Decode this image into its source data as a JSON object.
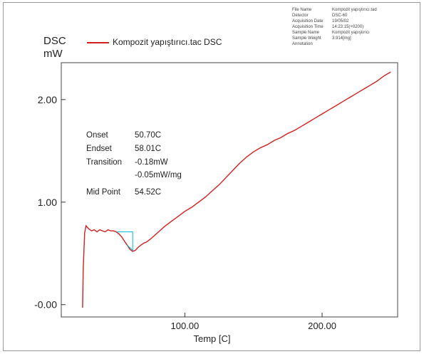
{
  "chart_data": {
    "type": "line",
    "ylabel_line1": "DSC",
    "ylabel_line2": "mW",
    "xlabel": "Temp [C]",
    "x_ticks": [
      {
        "value": 100,
        "label": "100.00"
      },
      {
        "value": 200,
        "label": "200.00"
      }
    ],
    "y_ticks": [
      {
        "value": 0,
        "label": "-0.00"
      },
      {
        "value": 1,
        "label": "1.00"
      },
      {
        "value": 2,
        "label": "2.00"
      }
    ],
    "xlim": [
      10,
      255
    ],
    "ylim": [
      -0.12,
      2.36
    ],
    "series": [
      {
        "name": "Kompozit yapıştırıcı.tac DSC",
        "color": "#d02020",
        "x": [
          25.5,
          26,
          27,
          28,
          30,
          32,
          34,
          36,
          38,
          40,
          42,
          44,
          46,
          48,
          50,
          52,
          54,
          56,
          58,
          60,
          62,
          64,
          66,
          68,
          70,
          72,
          75,
          80,
          85,
          90,
          95,
          100,
          105,
          110,
          115,
          120,
          125,
          130,
          135,
          140,
          145,
          150,
          155,
          160,
          165,
          170,
          175,
          180,
          185,
          190,
          195,
          200,
          205,
          210,
          215,
          220,
          225,
          230,
          235,
          240,
          245,
          250
        ],
        "y": [
          -0.03,
          0.35,
          0.7,
          0.77,
          0.74,
          0.72,
          0.73,
          0.71,
          0.73,
          0.72,
          0.71,
          0.73,
          0.72,
          0.72,
          0.71,
          0.69,
          0.66,
          0.62,
          0.58,
          0.54,
          0.52,
          0.53,
          0.56,
          0.58,
          0.6,
          0.61,
          0.64,
          0.7,
          0.76,
          0.81,
          0.86,
          0.91,
          0.95,
          1.0,
          1.05,
          1.11,
          1.17,
          1.24,
          1.31,
          1.38,
          1.44,
          1.49,
          1.53,
          1.56,
          1.6,
          1.63,
          1.67,
          1.7,
          1.74,
          1.78,
          1.82,
          1.86,
          1.9,
          1.94,
          1.98,
          2.02,
          2.06,
          2.1,
          2.14,
          2.18,
          2.23,
          2.27
        ]
      },
      {
        "name": "baseline",
        "color": "#00c0d0",
        "x": [
          50.7,
          62,
          62,
          58.01
        ],
        "y": [
          0.71,
          0.71,
          0.53,
          0.58
        ]
      }
    ]
  },
  "legend": {
    "label": "Kompozit yapıştırıcı.tac DSC"
  },
  "info": [
    {
      "k": "File Name",
      "v": "Kompozit yapıştırıcı.tad"
    },
    {
      "k": "Detector",
      "v": "DSC-60"
    },
    {
      "k": "Acquisition Date",
      "v": "19/05/02"
    },
    {
      "k": "Acquisition Time",
      "v": "14:23:15(+0200)"
    },
    {
      "k": "Sample Name",
      "v": "Kompozit yapıştırıcı"
    },
    {
      "k": "Sample Weight",
      "v": "3.914[mg]"
    },
    {
      "k": "Annotation",
      "v": ""
    }
  ],
  "annotation": {
    "onset_label": "Onset",
    "onset_value": "50.70C",
    "endset_label": "Endset",
    "endset_value": "58.01C",
    "transition_label": "Transition",
    "transition_value1": "-0.18mW",
    "transition_value2": "-0.05mW/mg",
    "midpoint_label": "Mid Point",
    "midpoint_value": "54.52C"
  }
}
